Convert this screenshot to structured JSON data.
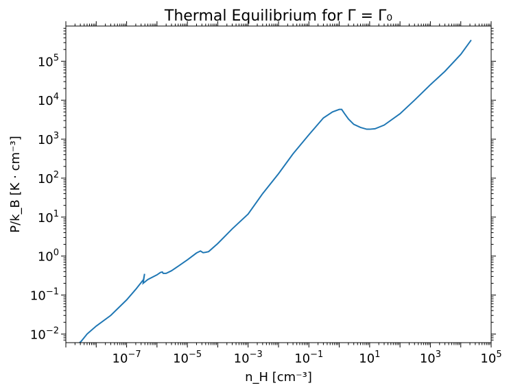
{
  "chart_data": {
    "type": "line",
    "title": "Thermal Equilibrium for Γ = Γ₀",
    "xlabel": "n_H [cm⁻³]",
    "ylabel": "P/k_B [K · cm⁻³]",
    "xscale": "log",
    "yscale": "log",
    "xlim": [
      1e-09,
      100000
    ],
    "ylim": [
      0.006,
      800000
    ],
    "grid": false,
    "legend": "none",
    "x_ticks": [
      {
        "value": 1e-07,
        "base": "10",
        "exp": "−7"
      },
      {
        "value": 1e-05,
        "base": "10",
        "exp": "−5"
      },
      {
        "value": 0.001,
        "base": "10",
        "exp": "−3"
      },
      {
        "value": 0.1,
        "base": "10",
        "exp": "−1"
      },
      {
        "value": 10,
        "base": "10",
        "exp": "1"
      },
      {
        "value": 1000,
        "base": "10",
        "exp": "3"
      },
      {
        "value": 100000,
        "base": "10",
        "exp": "5"
      }
    ],
    "y_ticks": [
      {
        "value": 0.01,
        "base": "10",
        "exp": "−2"
      },
      {
        "value": 0.1,
        "base": "10",
        "exp": "−1"
      },
      {
        "value": 1,
        "base": "10",
        "exp": "0"
      },
      {
        "value": 10,
        "base": "10",
        "exp": "1"
      },
      {
        "value": 100,
        "base": "10",
        "exp": "2"
      },
      {
        "value": 1000,
        "base": "10",
        "exp": "3"
      },
      {
        "value": 10000,
        "base": "10",
        "exp": "4"
      },
      {
        "value": 100000,
        "base": "10",
        "exp": "5"
      }
    ],
    "series": [
      {
        "color": "#1f77b4",
        "x": [
          2.5e-09,
          3.2e-09,
          5e-09,
          1e-08,
          3e-08,
          1e-07,
          2e-07,
          3.6e-07,
          3.9e-07,
          3.5e-07,
          5e-07,
          1e-06,
          1.3e-06,
          1.5e-06,
          1.6e-06,
          2e-06,
          3e-06,
          5e-06,
          1e-05,
          2e-05,
          2.7e-05,
          3.3e-05,
          4e-05,
          5e-05,
          0.0001,
          0.0003,
          0.001,
          0.003,
          0.01,
          0.03,
          0.1,
          0.3,
          0.6,
          1,
          1.2,
          1.5,
          2,
          3,
          5,
          8,
          10,
          15,
          30,
          100,
          300,
          1000,
          3000,
          10000,
          22000
        ],
        "y": [
          0.0055,
          0.0065,
          0.01,
          0.016,
          0.03,
          0.075,
          0.14,
          0.25,
          0.35,
          0.2,
          0.25,
          0.33,
          0.38,
          0.39,
          0.36,
          0.36,
          0.42,
          0.55,
          0.8,
          1.2,
          1.35,
          1.22,
          1.25,
          1.3,
          2.1,
          5,
          12,
          40,
          130,
          420,
          1300,
          3500,
          5000,
          5800,
          5800,
          4500,
          3300,
          2400,
          2000,
          1800,
          1800,
          1850,
          2300,
          4500,
          10000,
          25000,
          55000,
          150000,
          350000
        ]
      }
    ]
  }
}
